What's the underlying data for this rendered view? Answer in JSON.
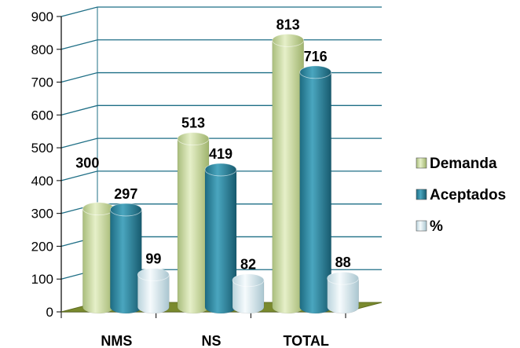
{
  "chart_data": {
    "type": "bar",
    "style": "3d-cylinder",
    "categories": [
      "NMS",
      "NS",
      "TOTAL"
    ],
    "series": [
      {
        "name": "Demanda",
        "values": [
          300,
          513,
          813
        ],
        "color": "#c6d9a0"
      },
      {
        "name": "Aceptados",
        "values": [
          297,
          419,
          716
        ],
        "color": "#2e8aa3"
      },
      {
        "name": "%",
        "values": [
          99,
          82,
          88
        ],
        "color": "#dfeef4"
      }
    ],
    "y_ticks": [
      "0",
      "100",
      "200",
      "300",
      "400",
      "500",
      "600",
      "700",
      "800",
      "900"
    ],
    "ylim": [
      0,
      900
    ],
    "grid": true,
    "grid_color": "#1f6f86",
    "floor_color": "#7a8a2e",
    "legend_position": "right"
  }
}
